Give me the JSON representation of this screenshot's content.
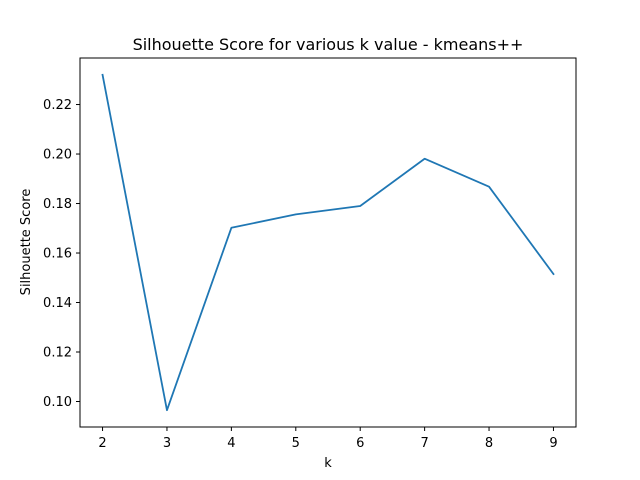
{
  "chart_data": {
    "type": "line",
    "title": "Silhouette Score for various k value - kmeans++",
    "xlabel": "k",
    "ylabel": "Silhouette Score",
    "x": [
      2,
      3,
      4,
      5,
      6,
      7,
      8,
      9
    ],
    "series": [
      {
        "values": [
          0.232,
          0.0965,
          0.1702,
          0.1756,
          0.179,
          0.1981,
          0.1868,
          0.1515
        ]
      }
    ],
    "xticks": [
      "2",
      "3",
      "4",
      "5",
      "6",
      "7",
      "8",
      "9"
    ],
    "yticks": [
      "0.10",
      "0.12",
      "0.14",
      "0.16",
      "0.18",
      "0.20",
      "0.22"
    ],
    "xlim": [
      1.65,
      9.35
    ],
    "ylim": [
      0.0897,
      0.2388
    ],
    "grid": false,
    "colors": {
      "line": "#1f77b4",
      "axes": "#000000",
      "background": "#ffffff"
    }
  }
}
